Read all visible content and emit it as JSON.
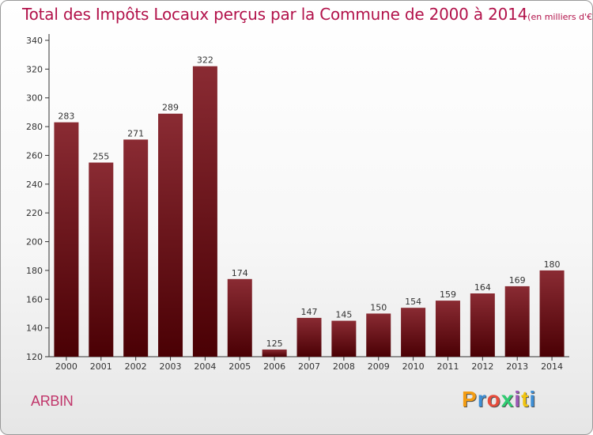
{
  "title": "Total des Impôts Locaux perçus par la Commune de 2000 à 2014",
  "title_unit": "(en milliers d'€)",
  "commune": "ARBIN",
  "logo": {
    "letters": [
      "P",
      "r",
      "o",
      "x",
      "i",
      "t",
      "i"
    ],
    "colors": [
      "#f39c12",
      "#3d8fd6",
      "#e74c3c",
      "#2ecc71",
      "#9b59b6",
      "#f1c40f",
      "#3d8fd6"
    ]
  },
  "colors": {
    "title": "#b2124a",
    "bar_top": "#8a2b33",
    "bar_bottom": "#4a0004",
    "commune": "#c0356a"
  },
  "chart_data": {
    "type": "bar",
    "title": "Total des Impôts Locaux perçus par la Commune de 2000 à 2014",
    "unit": "(en milliers d'€)",
    "categories": [
      "2000",
      "2001",
      "2002",
      "2003",
      "2004",
      "2005",
      "2006",
      "2007",
      "2008",
      "2009",
      "2010",
      "2011",
      "2012",
      "2013",
      "2014"
    ],
    "values": [
      283,
      255,
      271,
      289,
      322,
      174,
      125,
      147,
      145,
      150,
      154,
      159,
      164,
      169,
      180
    ],
    "ylim": [
      120,
      340
    ],
    "yticks": [
      120,
      140,
      160,
      180,
      200,
      220,
      240,
      260,
      280,
      300,
      320,
      340
    ],
    "grid": false,
    "legend": "none"
  }
}
